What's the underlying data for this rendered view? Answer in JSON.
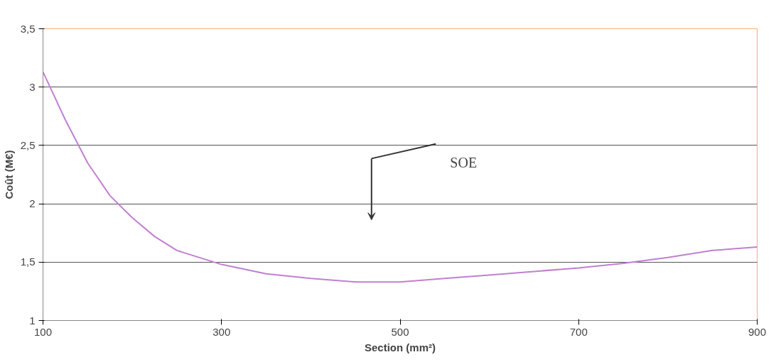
{
  "chart_data": {
    "type": "line",
    "xlabel": "Section (mm²)",
    "ylabel": "Coût (M€)",
    "x": [
      100,
      125,
      150,
      175,
      200,
      225,
      250,
      300,
      350,
      400,
      450,
      500,
      550,
      600,
      650,
      700,
      750,
      800,
      850,
      900
    ],
    "series": [
      {
        "color": "#c080d0",
        "values": [
          3.13,
          2.72,
          2.35,
          2.07,
          1.88,
          1.72,
          1.6,
          1.48,
          1.4,
          1.36,
          1.33,
          1.33,
          1.36,
          1.39,
          1.42,
          1.45,
          1.49,
          1.54,
          1.6,
          1.63
        ]
      }
    ],
    "xlim": [
      100,
      900
    ],
    "ylim": [
      1,
      3.5
    ],
    "xticks": [
      100,
      300,
      500,
      700,
      900
    ],
    "yticks": [
      1,
      {
        "value": 1.5,
        "label": "1,5"
      },
      2,
      {
        "value": 2.5,
        "label": "2,5"
      },
      3,
      {
        "value": 3.5,
        "label": "3,5"
      }
    ],
    "grid": "y",
    "marker": "none",
    "line_style": "solid",
    "annotations": [
      "SOE"
    ]
  }
}
